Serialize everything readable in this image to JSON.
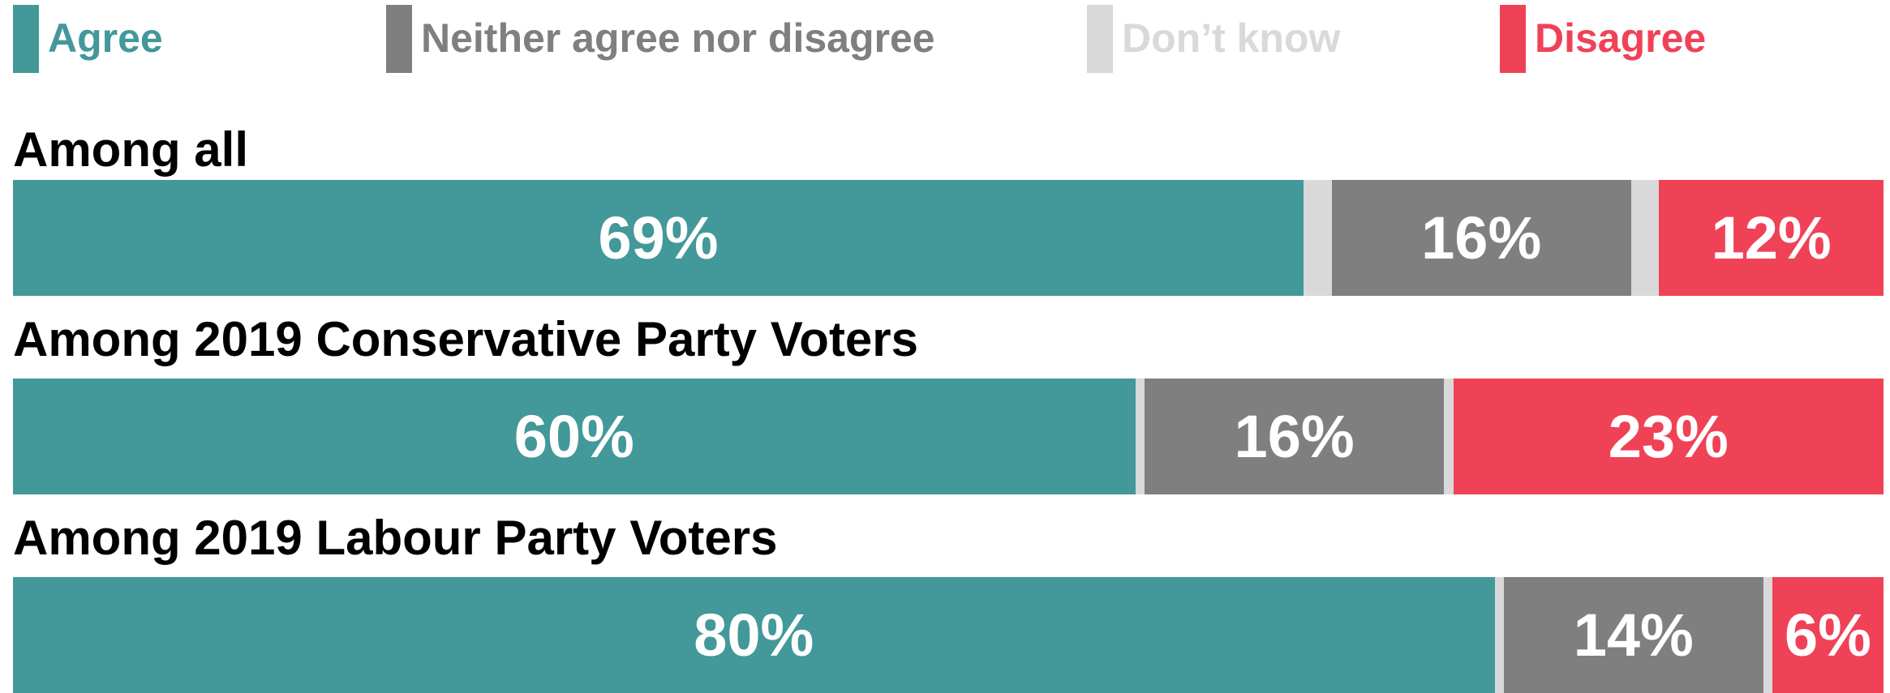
{
  "chart_data": {
    "type": "bar",
    "orientation": "horizontal",
    "stacked": true,
    "legend_position": "top",
    "categories": [
      "Among all",
      "Among 2019 Conservative Party Voters",
      "Among 2019 Labour Party Voters"
    ],
    "series": [
      {
        "name": "Agree",
        "color": "#43989a",
        "values": [
          69,
          60,
          80
        ],
        "labels": [
          "69%",
          "60%",
          "80%"
        ]
      },
      {
        "name": "Don’t know",
        "color": "#d9d9d9",
        "values": [
          1.5,
          0.5,
          0.5
        ],
        "labels": [
          "",
          "",
          ""
        ]
      },
      {
        "name": "Neither agree nor disagree",
        "color": "#7f7f7f",
        "values": [
          16,
          16,
          14
        ],
        "labels": [
          "16%",
          "16%",
          "14%"
        ]
      },
      {
        "name": "Don’t know",
        "color": "#d9d9d9",
        "values": [
          1.5,
          0.5,
          0.5
        ],
        "labels": [
          "",
          "",
          ""
        ]
      },
      {
        "name": "Disagree",
        "color": "#f04257",
        "values": [
          12,
          23,
          6
        ],
        "labels": [
          "12%",
          "23%",
          "6%"
        ]
      }
    ],
    "xlim": [
      0,
      100
    ]
  },
  "legend": [
    {
      "label": "Agree",
      "color": "#43989a"
    },
    {
      "label": "Neither agree nor disagree",
      "color": "#7f7f7f"
    },
    {
      "label": "Don’t know",
      "color": "#d9d9d9"
    },
    {
      "label": "Disagree",
      "color": "#f04257"
    }
  ]
}
